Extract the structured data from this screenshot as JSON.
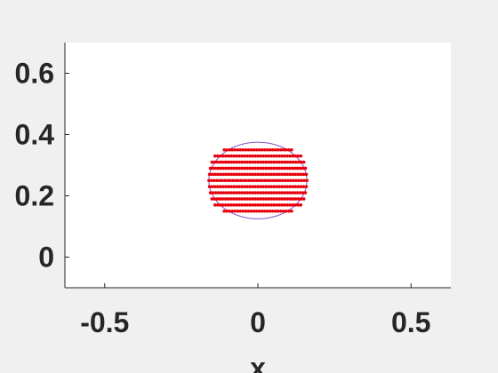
{
  "chart_data": {
    "type": "scatter",
    "title": "",
    "xlabel": "x",
    "ylabel": "",
    "xlim": [
      -0.63,
      0.63
    ],
    "ylim": [
      -0.1,
      0.7
    ],
    "grid": false,
    "xticks": [
      {
        "value": -0.5,
        "label": "-0.5"
      },
      {
        "value": 0,
        "label": "0"
      },
      {
        "value": 0.5,
        "label": "0.5"
      }
    ],
    "yticks": [
      {
        "value": 0,
        "label": "0"
      },
      {
        "value": 0.2,
        "label": "0.2"
      },
      {
        "value": 0.4,
        "label": "0.4"
      },
      {
        "value": 0.6,
        "label": "0.6"
      }
    ],
    "ellipse": {
      "center": [
        0,
        0.25
      ],
      "radius_x": 0.16,
      "radius_y": 0.125,
      "color": "#8a4fc7"
    },
    "series": [
      {
        "marker_color": "#e8000b",
        "rows": [
          {
            "y": 0.35,
            "x_min": -0.11,
            "x_max": 0.11
          },
          {
            "y": 0.33,
            "x_min": -0.14,
            "x_max": 0.14
          },
          {
            "y": 0.31,
            "x_min": -0.15,
            "x_max": 0.15
          },
          {
            "y": 0.29,
            "x_min": -0.155,
            "x_max": 0.155
          },
          {
            "y": 0.27,
            "x_min": -0.158,
            "x_max": 0.158
          },
          {
            "y": 0.25,
            "x_min": -0.16,
            "x_max": 0.16
          },
          {
            "y": 0.23,
            "x_min": -0.158,
            "x_max": 0.158
          },
          {
            "y": 0.21,
            "x_min": -0.155,
            "x_max": 0.155
          },
          {
            "y": 0.19,
            "x_min": -0.15,
            "x_max": 0.15
          },
          {
            "y": 0.17,
            "x_min": -0.14,
            "x_max": 0.14
          },
          {
            "y": 0.15,
            "x_min": -0.11,
            "x_max": 0.11
          }
        ]
      }
    ]
  }
}
